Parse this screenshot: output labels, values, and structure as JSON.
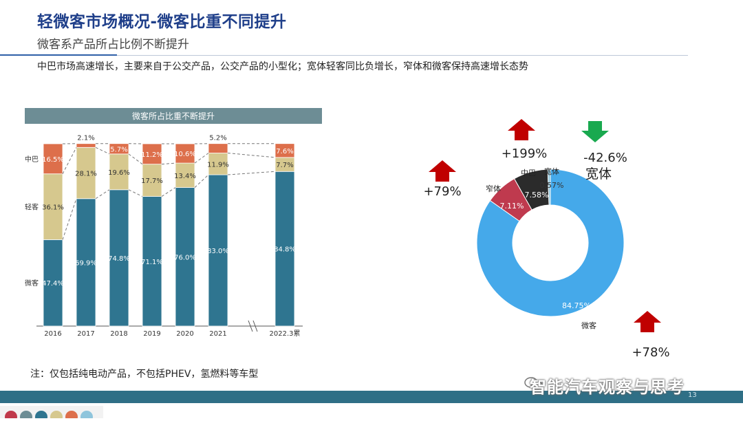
{
  "page": {
    "title": "轻微客市场概况-微客比重不同提升",
    "subtitle": "微客系产品所占比例不断提升",
    "summary": "中巴市场高速增长，主要来自于公交产品，公交产品的小型化；宽体轻客同比负增长，窄体和微客保持高速增长态势",
    "note": "注：仅包括纯电动产品，不包括PHEV，氢燃料等车型",
    "watermark": "智能汽车观察与思考",
    "page_number": "13"
  },
  "colors": {
    "title": "#1f3f8a",
    "weike": "#2f7590",
    "qingke": "#d6c88e",
    "zhongba": "#dd6f4b",
    "header_bar": "#6d8d95",
    "donut_weike": "#45a9ea",
    "donut_zhaiti": "#bf3a4e",
    "donut_zhongba": "#2b2b2b",
    "donut_kuanti": "#8fc5dc",
    "arrow_up": "#c00000",
    "arrow_down": "#19a94f",
    "footer": "#2f6f86"
  },
  "footer_dots": [
    "#c0394a",
    "#6d8d95",
    "#2f7590",
    "#d6c88e",
    "#dd6f4b",
    "#8fc5dc"
  ],
  "chart_data": [
    {
      "type": "bar",
      "stacked": true,
      "title": "微客所占比重不断提升",
      "categories": [
        "2016",
        "2017",
        "2018",
        "2019",
        "2020",
        "2021",
        "2022.3累"
      ],
      "y_labels": [
        "中巴",
        "轻客",
        "微客"
      ],
      "ylim": [
        0,
        100
      ],
      "series": [
        {
          "name": "微客",
          "values": [
            47.4,
            69.9,
            74.8,
            71.1,
            76.0,
            83.0,
            84.8
          ],
          "labels": [
            "47.4%",
            "69.9%",
            "74.8%",
            "71.1%",
            "76.0%",
            "83.0%",
            "84.8%"
          ]
        },
        {
          "name": "轻客",
          "values": [
            36.1,
            28.1,
            19.6,
            17.7,
            13.4,
            11.9,
            7.7
          ],
          "labels": [
            "36.1%",
            "28.1%",
            "19.6%",
            "17.7%",
            "13.4%",
            "11.9%",
            "7.7%"
          ]
        },
        {
          "name": "中巴",
          "values": [
            16.5,
            2.1,
            5.7,
            11.2,
            10.6,
            5.2,
            7.6
          ],
          "labels": [
            "16.5%",
            "2.1%",
            "5.7%",
            "11.2%",
            "10.6%",
            "5.2%",
            "7.6%"
          ]
        }
      ],
      "axis_break_before_last": true
    },
    {
      "type": "pie",
      "donut": true,
      "slices": [
        {
          "name": "微客",
          "value": 84.75,
          "label": "84.75%"
        },
        {
          "name": "窄体",
          "value": 7.11,
          "label": "7.11%"
        },
        {
          "name": "中巴",
          "value": 7.58,
          "label": "7.58%"
        },
        {
          "name": "宽体",
          "value": 0.57,
          "label": "0.57%"
        }
      ],
      "annotations": [
        {
          "text": "+79%",
          "direction": "up"
        },
        {
          "text": "+199%",
          "direction": "up"
        },
        {
          "text": "-42.6%",
          "direction": "down"
        },
        {
          "text": "宽体",
          "direction": "none"
        },
        {
          "text": "+78%",
          "direction": "up"
        }
      ]
    }
  ]
}
